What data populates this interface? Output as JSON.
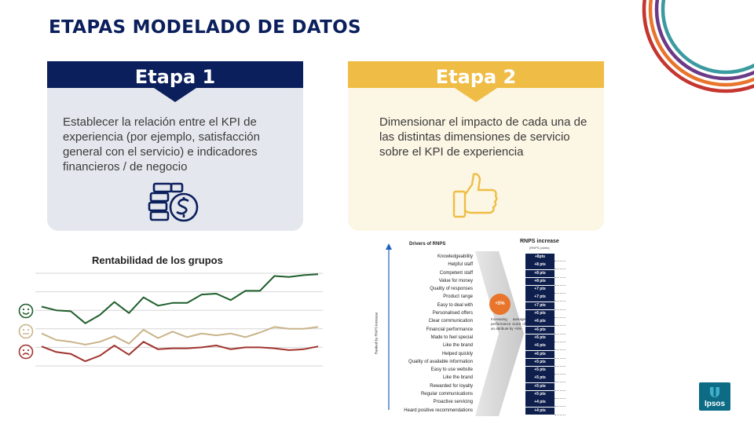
{
  "page": {
    "title": "ETAPAS MODELADO DE DATOS"
  },
  "stage1": {
    "label": "Etapa 1",
    "text": "Establecer la relación entre el KPI de experiencia (por ejemplo, satisfacción general con el servicio) e indicadores financieros / de negocio",
    "icon": "money-stack-icon",
    "header_color": "#0b1f5c",
    "body_color": "#e4e7ed"
  },
  "stage2": {
    "label": "Etapa 2",
    "text": "Dimensionar el impacto de cada una de las distintas dimensiones de servicio sobre el KPI de experiencia",
    "icon": "thumbs-up-icon",
    "header_color": "#efbd45",
    "body_color": "#fcf6e4"
  },
  "profitability_chart": {
    "title": "Rentabilidad de los grupos",
    "faces": [
      "happy-face-icon",
      "neutral-face-icon",
      "sad-face-icon"
    ],
    "chart_data": {
      "type": "line",
      "title": "Rentabilidad de los grupos",
      "x": [
        1,
        2,
        3,
        4,
        5,
        6,
        7,
        8,
        9,
        10,
        11,
        12,
        13,
        14,
        15,
        16,
        17,
        18,
        19,
        20
      ],
      "ylim": [
        0,
        100
      ],
      "grid": true,
      "series": [
        {
          "color": "#1e5e2a",
          "values": [
            64,
            60,
            59,
            46,
            55,
            69,
            57,
            74,
            65,
            68,
            68,
            77,
            78,
            71,
            81,
            81,
            97,
            96,
            98,
            99
          ]
        },
        {
          "color": "#c9b48a",
          "values": [
            35,
            28,
            26,
            23,
            26,
            32,
            24,
            39,
            30,
            37,
            31,
            35,
            33,
            35,
            31,
            36,
            42,
            40,
            40,
            42
          ]
        },
        {
          "color": "#a0332e",
          "values": [
            21,
            15,
            13,
            5,
            11,
            22,
            12,
            26,
            18,
            19,
            19,
            20,
            22,
            18,
            20,
            20,
            19,
            17,
            18,
            21
          ]
        }
      ]
    }
  },
  "rnps": {
    "drivers_header": "Drivers of RNPS",
    "increase_header": "RNPS increase",
    "increase_sub": "(RNPS points)",
    "axis_label": "Ranked by RNPS increase",
    "badge": "+5%",
    "note": "Increasing average performance score of an attribute by +5%",
    "rows": [
      {
        "label": "Knowledgeability",
        "value": "+8pts"
      },
      {
        "label": "Helpful staff",
        "value": "+8 pts"
      },
      {
        "label": "Competent staff",
        "value": "+8 pts"
      },
      {
        "label": "Value for money",
        "value": "+8 pts"
      },
      {
        "label": "Quality of responses",
        "value": "+7 pts"
      },
      {
        "label": "Product range",
        "value": "+7 pts"
      },
      {
        "label": "Easy to deal with",
        "value": "+7 pts"
      },
      {
        "label": "Personalised offers",
        "value": "+6 pts"
      },
      {
        "label": "Clear communication",
        "value": "+6 pts"
      },
      {
        "label": "Financial performance",
        "value": "+6 pts"
      },
      {
        "label": "Made to feel special",
        "value": "+6 pts"
      },
      {
        "label": "Like the brand",
        "value": "+6 pts"
      },
      {
        "label": "Helped quickly",
        "value": "+6 pts"
      },
      {
        "label": "Quality of available information",
        "value": "+5 pts"
      },
      {
        "label": "Easy to use website",
        "value": "+5 pts"
      },
      {
        "label": "Like the brand",
        "value": "+5 pts"
      },
      {
        "label": "Rewarded for loyalty",
        "value": "+5 pts"
      },
      {
        "label": "Regular communications",
        "value": "+5 pts"
      },
      {
        "label": "Proactive servicing",
        "value": "+4 pts"
      },
      {
        "label": "Heard positive recommendations",
        "value": "+4 pts"
      }
    ]
  },
  "logo": {
    "text": "Ipsos"
  },
  "colors": {
    "navy": "#0b1f5c",
    "gold": "#efbd45",
    "arc_teal": "#3b9aa0",
    "arc_orange": "#e8752b",
    "arc_red": "#c4362f",
    "arc_purple": "#6b3a87"
  }
}
